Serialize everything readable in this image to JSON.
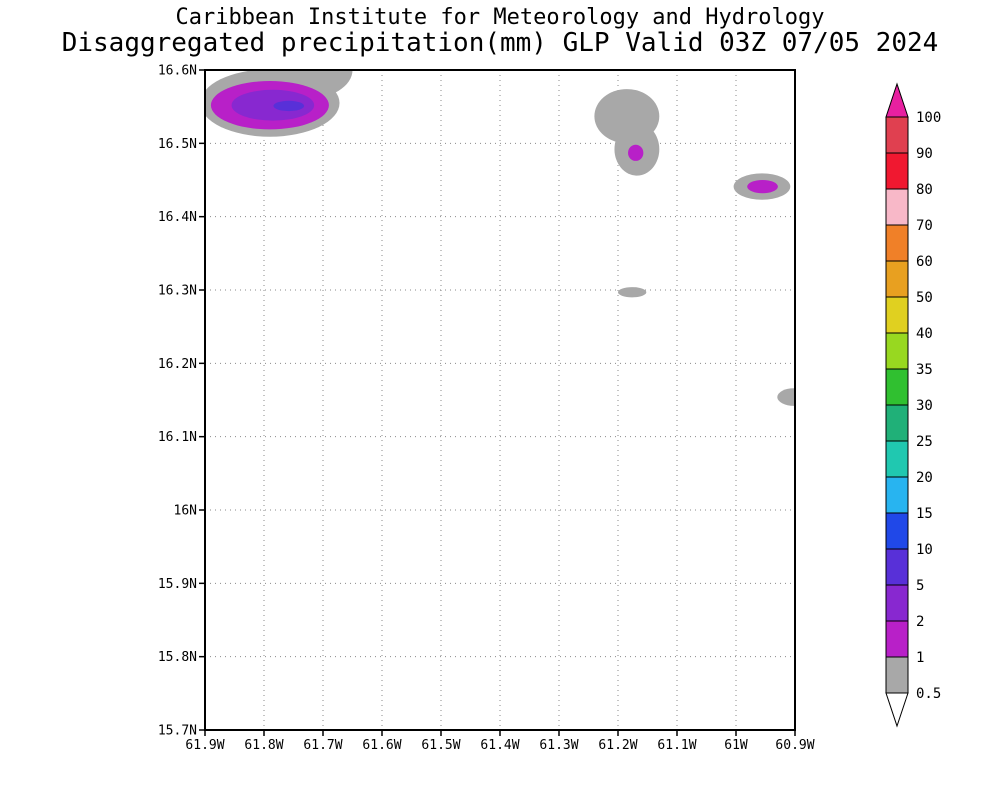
{
  "title": {
    "line1": "Caribbean Institute for Meteorology and Hydrology",
    "line2": "Disaggregated precipitation(mm) GLP Valid 03Z 07/05 2024"
  },
  "chart_data": {
    "type": "heatmap",
    "subtype": "filled-contour-precipitation-map",
    "title": "Caribbean Institute for Meteorology and Hydrology",
    "subtitle": "Disaggregated precipitation(mm) GLP Valid 03Z 07/05 2024",
    "units": "mm",
    "valid_time": "03Z 07/05 2024",
    "region_code": "GLP",
    "grid": "dotted",
    "x_axis": {
      "ticks": [
        "61.9W",
        "61.8W",
        "61.7W",
        "61.6W",
        "61.5W",
        "61.4W",
        "61.3W",
        "61.2W",
        "61.1W",
        "61W",
        "60.9W"
      ],
      "range": [
        61.9,
        60.9
      ],
      "orientation": "degrees West decreasing to the right"
    },
    "y_axis": {
      "ticks": [
        "16.6N",
        "16.5N",
        "16.4N",
        "16.3N",
        "16.2N",
        "16.1N",
        "16N",
        "15.9N",
        "15.8N",
        "15.7N"
      ],
      "range": [
        16.6,
        15.7
      ]
    },
    "colorbar": {
      "position": "right",
      "labels": [
        "100",
        "90",
        "80",
        "70",
        "60",
        "50",
        "40",
        "35",
        "30",
        "25",
        "20",
        "15",
        "10",
        "5",
        "2",
        "1",
        "0.5"
      ],
      "segment_colors": [
        "#e04050",
        "#f01830",
        "#f8b8c8",
        "#f08028",
        "#e8a020",
        "#e0d020",
        "#98d820",
        "#30c030",
        "#20b078",
        "#20c8b0",
        "#28b4f0",
        "#2048e8",
        "#5830d8",
        "#8828d0",
        "#b820c8",
        "#a8a8a8"
      ],
      "arrow_top_color": "#e820a0",
      "arrow_bottom_color": "#ffffff"
    },
    "features": [
      {
        "name": "northwest-cell-gray",
        "min_mm": 0.5,
        "lonW": 61.79,
        "latN": 16.555,
        "rx": 0.118,
        "ry": 0.046,
        "color": "#a8a8a8"
      },
      {
        "name": "northwest-cell-gray-top",
        "min_mm": 0.5,
        "lonW": 61.73,
        "latN": 16.6,
        "rx": 0.08,
        "ry": 0.04,
        "color": "#a8a8a8"
      },
      {
        "name": "northwest-cell-1mm",
        "min_mm": 1,
        "lonW": 61.79,
        "latN": 16.552,
        "rx": 0.1,
        "ry": 0.033,
        "color": "#b820c8"
      },
      {
        "name": "northwest-cell-2mm",
        "min_mm": 2,
        "lonW": 61.785,
        "latN": 16.552,
        "rx": 0.07,
        "ry": 0.021,
        "color": "#8828d0"
      },
      {
        "name": "northwest-cell-5mm",
        "min_mm": 5,
        "lonW": 61.758,
        "latN": 16.551,
        "rx": 0.026,
        "ry": 0.007,
        "color": "#5830d8"
      },
      {
        "name": "north-central-cell-gray-upper",
        "min_mm": 0.5,
        "lonW": 61.185,
        "latN": 16.537,
        "rx": 0.055,
        "ry": 0.037,
        "color": "#a8a8a8"
      },
      {
        "name": "north-central-cell-gray-lower",
        "min_mm": 0.5,
        "lonW": 61.168,
        "latN": 16.492,
        "rx": 0.038,
        "ry": 0.036,
        "color": "#a8a8a8"
      },
      {
        "name": "north-central-cell-1mm",
        "min_mm": 1,
        "lonW": 61.17,
        "latN": 16.487,
        "rx": 0.013,
        "ry": 0.011,
        "color": "#b820c8"
      },
      {
        "name": "northeast-cell-gray",
        "min_mm": 0.5,
        "lonW": 60.956,
        "latN": 16.441,
        "rx": 0.048,
        "ry": 0.018,
        "color": "#a8a8a8"
      },
      {
        "name": "northeast-cell-1mm",
        "min_mm": 1,
        "lonW": 60.955,
        "latN": 16.441,
        "rx": 0.026,
        "ry": 0.009,
        "color": "#b820c8"
      },
      {
        "name": "central-speck-gray",
        "min_mm": 0.5,
        "lonW": 61.176,
        "latN": 16.297,
        "rx": 0.024,
        "ry": 0.007,
        "color": "#a8a8a8"
      },
      {
        "name": "east-edge-gray",
        "min_mm": 0.5,
        "lonW": 60.902,
        "latN": 16.154,
        "rx": 0.028,
        "ry": 0.012,
        "color": "#a8a8a8"
      }
    ]
  }
}
